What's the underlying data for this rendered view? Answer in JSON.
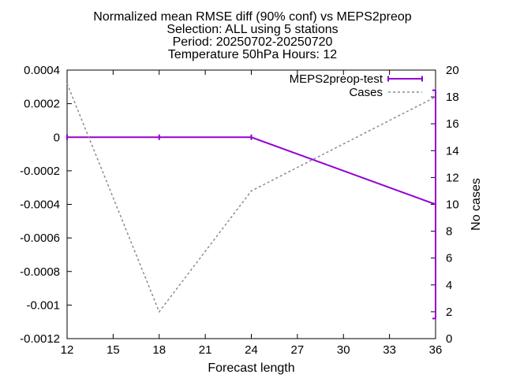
{
  "chart_data": {
    "type": "line",
    "title": [
      "Normalized mean RMSE diff (90% conf) vs MEPS2preop",
      "Selection: ALL using      5 stations",
      "Period: 20250702-20250720",
      "Temperature 50hPa   Hours: 12"
    ],
    "xlabel": "Forecast length",
    "ylabel": "",
    "y2label": "No cases",
    "xlim": [
      12,
      36
    ],
    "ylim": [
      -0.0012,
      0.0004
    ],
    "y2lim": [
      0,
      20
    ],
    "x_ticks": [
      12,
      15,
      18,
      21,
      24,
      27,
      30,
      33,
      36
    ],
    "y_ticks": [
      0.0004,
      0.0002,
      0,
      -0.0002,
      -0.0004,
      -0.0006,
      -0.0008,
      -0.001,
      -0.0012
    ],
    "y_tick_labels": [
      "0.0004",
      "0.0002",
      "0",
      "-0.0002",
      "-0.0004",
      "-0.0006",
      "-0.0008",
      "-0.001",
      "-0.0012"
    ],
    "y2_ticks": [
      0,
      2,
      4,
      6,
      8,
      10,
      12,
      14,
      16,
      18,
      20
    ],
    "legend_position": "top-right",
    "grid": false,
    "series": [
      {
        "name": "MEPS2preop-test",
        "axis": "y",
        "color": "#9400d3",
        "style": "solid-errorbars",
        "x": [
          12,
          18,
          24,
          36
        ],
        "values": [
          0,
          0,
          0,
          -0.0004
        ],
        "error_low": [
          0,
          0,
          0,
          -0.00108
        ],
        "error_high": [
          0,
          0,
          0,
          0.00028
        ]
      },
      {
        "name": "Cases",
        "axis": "y2",
        "color": "#8c8c8c",
        "style": "dashed",
        "x": [
          12,
          18,
          24,
          36
        ],
        "values": [
          19,
          2,
          11,
          18
        ]
      }
    ]
  }
}
